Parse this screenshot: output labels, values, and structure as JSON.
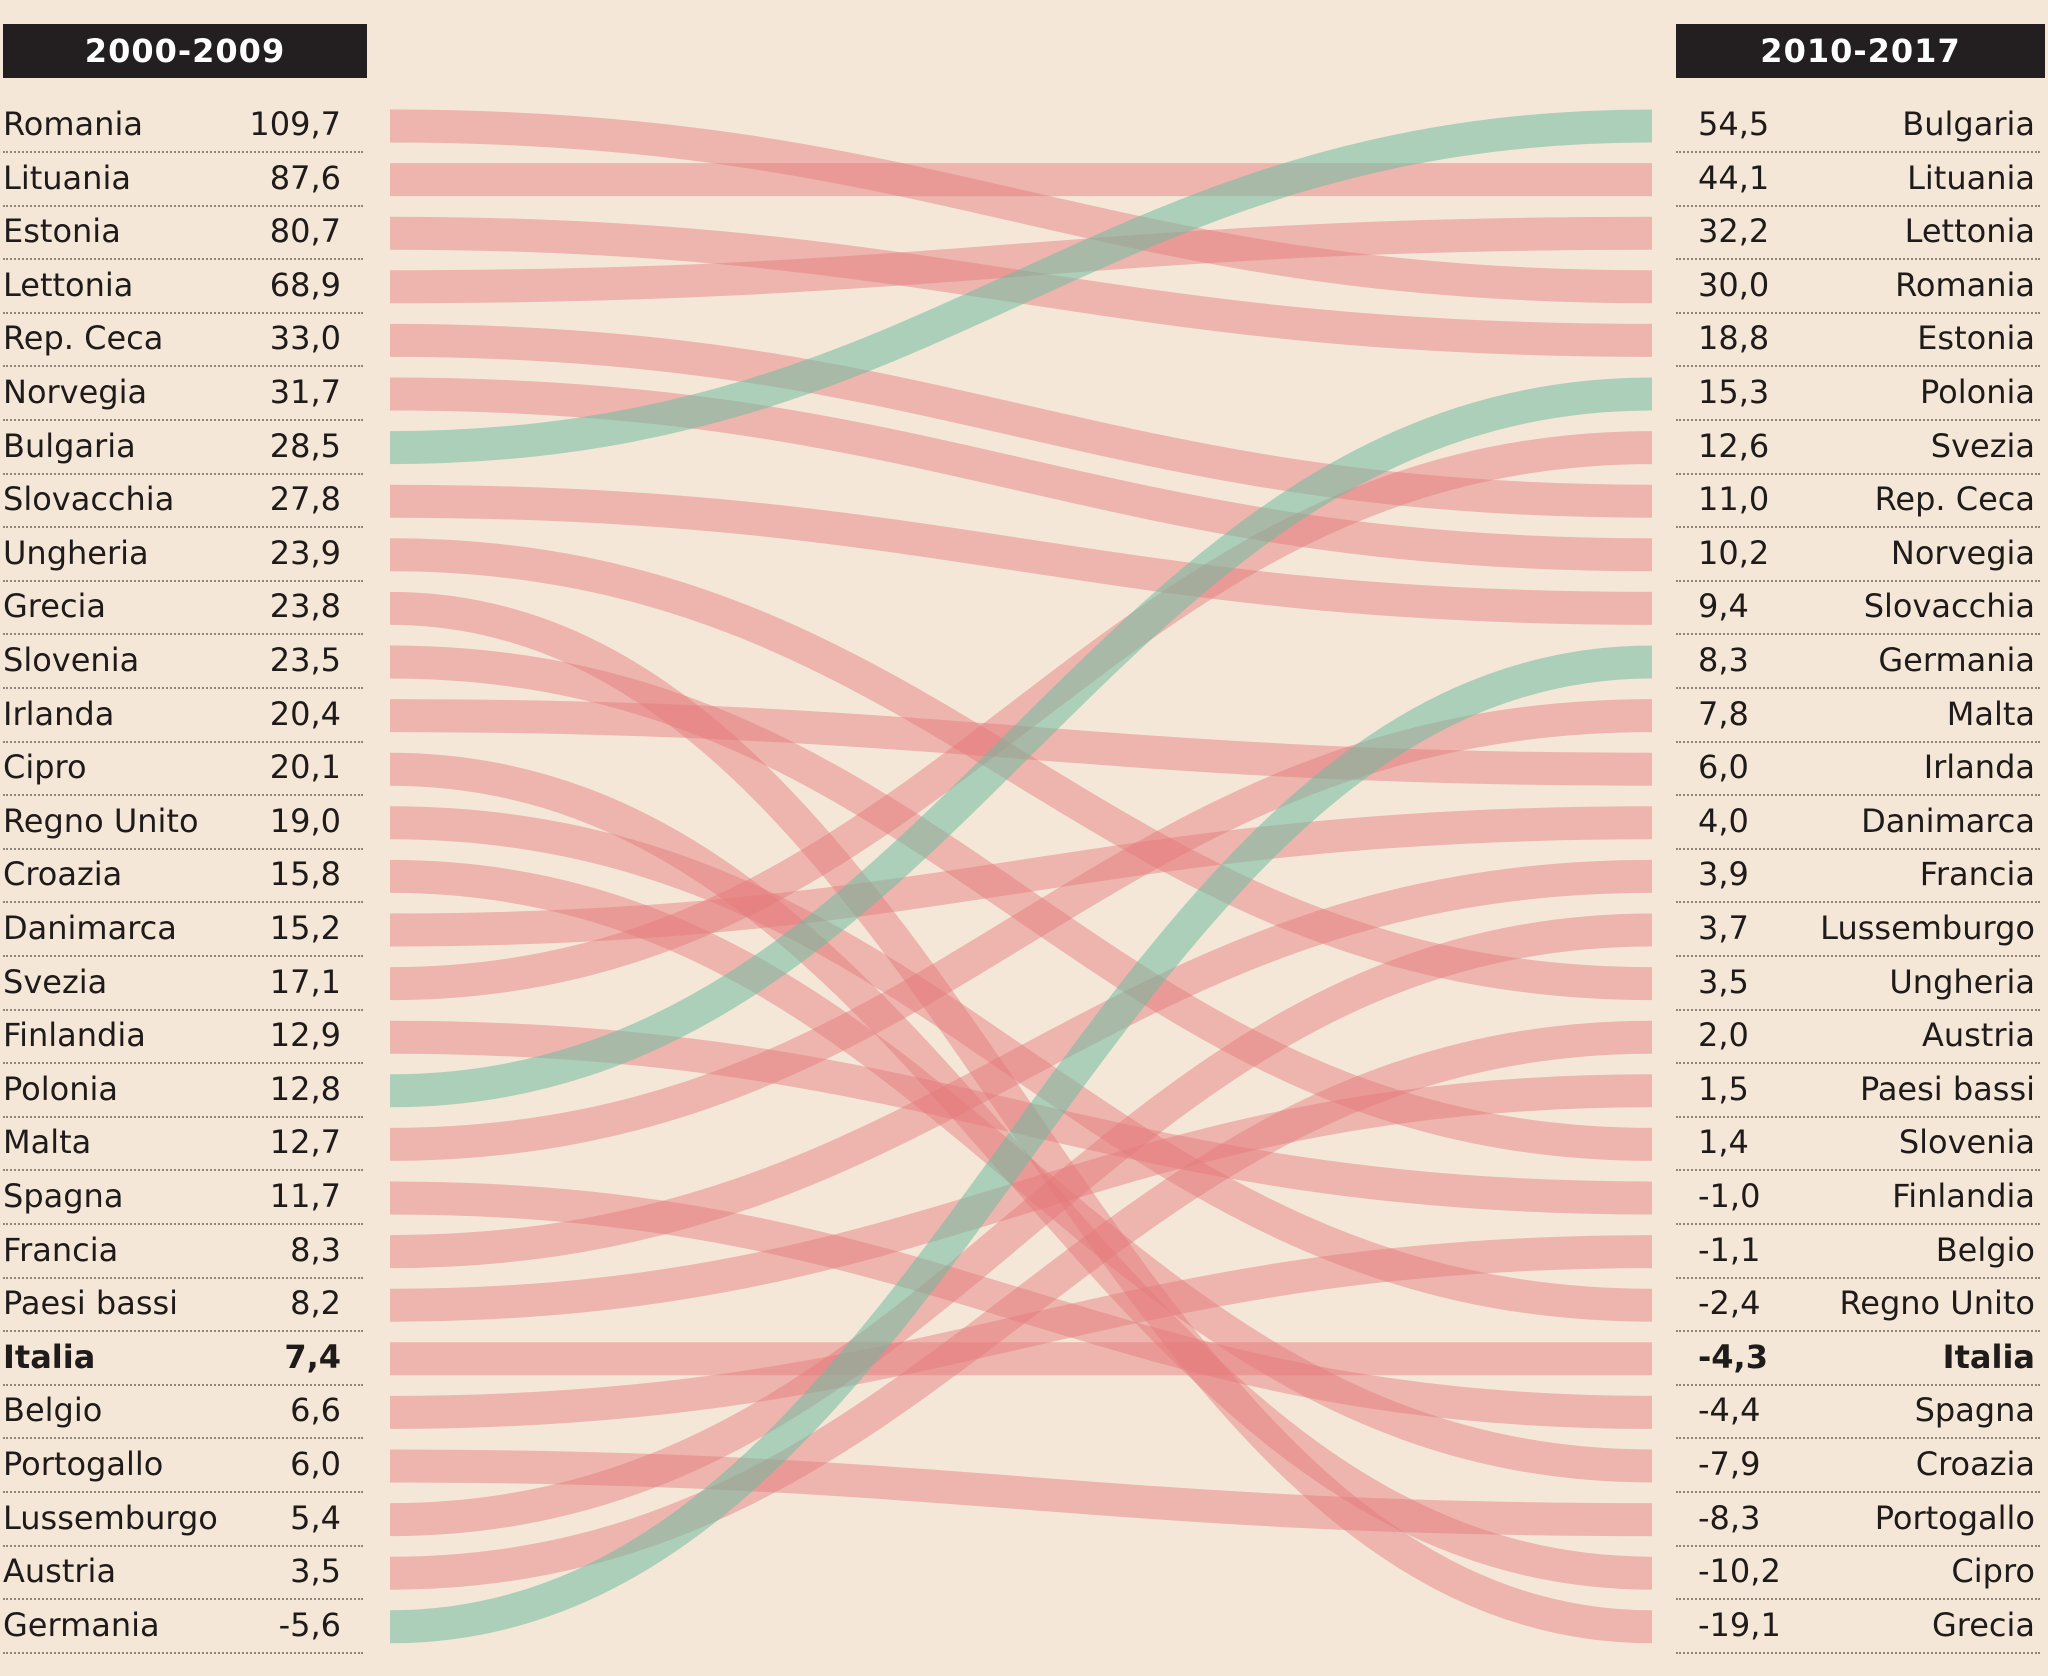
{
  "chart_data": {
    "type": "slope",
    "left_header": "2000-2009",
    "right_header": "2010-2017",
    "left": [
      {
        "country": "Romania",
        "value": "109,7"
      },
      {
        "country": "Lituania",
        "value": "87,6"
      },
      {
        "country": "Estonia",
        "value": "80,7"
      },
      {
        "country": "Lettonia",
        "value": "68,9"
      },
      {
        "country": "Rep. Ceca",
        "value": "33,0"
      },
      {
        "country": "Norvegia",
        "value": "31,7"
      },
      {
        "country": "Bulgaria",
        "value": "28,5"
      },
      {
        "country": "Slovacchia",
        "value": "27,8"
      },
      {
        "country": "Ungheria",
        "value": "23,9"
      },
      {
        "country": "Grecia",
        "value": "23,8"
      },
      {
        "country": "Slovenia",
        "value": "23,5"
      },
      {
        "country": "Irlanda",
        "value": "20,4"
      },
      {
        "country": "Cipro",
        "value": "20,1"
      },
      {
        "country": "Regno Unito",
        "value": "19,0"
      },
      {
        "country": "Croazia",
        "value": "15,8"
      },
      {
        "country": "Danimarca",
        "value": "15,2"
      },
      {
        "country": "Svezia",
        "value": "17,1"
      },
      {
        "country": "Finlandia",
        "value": "12,9"
      },
      {
        "country": "Polonia",
        "value": "12,8"
      },
      {
        "country": "Malta",
        "value": "12,7"
      },
      {
        "country": "Spagna",
        "value": "11,7"
      },
      {
        "country": "Francia",
        "value": "8,3"
      },
      {
        "country": "Paesi bassi",
        "value": "8,2"
      },
      {
        "country": "Italia",
        "value": "7,4"
      },
      {
        "country": "Belgio",
        "value": "6,6"
      },
      {
        "country": "Portogallo",
        "value": "6,0"
      },
      {
        "country": "Lussemburgo",
        "value": "5,4"
      },
      {
        "country": "Austria",
        "value": "3,5"
      },
      {
        "country": "Germania",
        "value": "-5,6"
      }
    ],
    "right": [
      {
        "country": "Bulgaria",
        "value": "54,5"
      },
      {
        "country": "Lituania",
        "value": "44,1"
      },
      {
        "country": "Lettonia",
        "value": "32,2"
      },
      {
        "country": "Romania",
        "value": "30,0"
      },
      {
        "country": "Estonia",
        "value": "18,8"
      },
      {
        "country": "Polonia",
        "value": "15,3"
      },
      {
        "country": "Svezia",
        "value": "12,6"
      },
      {
        "country": "Rep. Ceca",
        "value": "11,0"
      },
      {
        "country": "Norvegia",
        "value": "10,2"
      },
      {
        "country": "Slovacchia",
        "value": "9,4"
      },
      {
        "country": "Germania",
        "value": "8,3"
      },
      {
        "country": "Malta",
        "value": "7,8"
      },
      {
        "country": "Irlanda",
        "value": "6,0"
      },
      {
        "country": "Danimarca",
        "value": "4,0"
      },
      {
        "country": "Francia",
        "value": "3,9"
      },
      {
        "country": "Lussemburgo",
        "value": "3,7"
      },
      {
        "country": "Ungheria",
        "value": "3,5"
      },
      {
        "country": "Austria",
        "value": "2,0"
      },
      {
        "country": "Paesi bassi",
        "value": "1,5"
      },
      {
        "country": "Slovenia",
        "value": "1,4"
      },
      {
        "country": "Finlandia",
        "value": "-1,0"
      },
      {
        "country": "Belgio",
        "value": "-1,1"
      },
      {
        "country": "Regno Unito",
        "value": "-2,4"
      },
      {
        "country": "Italia",
        "value": "-4,3"
      },
      {
        "country": "Spagna",
        "value": "-4,4"
      },
      {
        "country": "Croazia",
        "value": "-7,9"
      },
      {
        "country": "Portogallo",
        "value": "-8,3"
      },
      {
        "country": "Cipro",
        "value": "-10,2"
      },
      {
        "country": "Grecia",
        "value": "-19,1"
      }
    ],
    "highlight_country": "Italia",
    "improved_countries": [
      "Bulgaria",
      "Polonia",
      "Germania"
    ],
    "colors": {
      "background": "#f5e7d7",
      "header_bg": "#231f20",
      "header_text": "#ffffff",
      "ribbon_red": "#e4787a",
      "ribbon_green": "#6fbba2"
    }
  }
}
